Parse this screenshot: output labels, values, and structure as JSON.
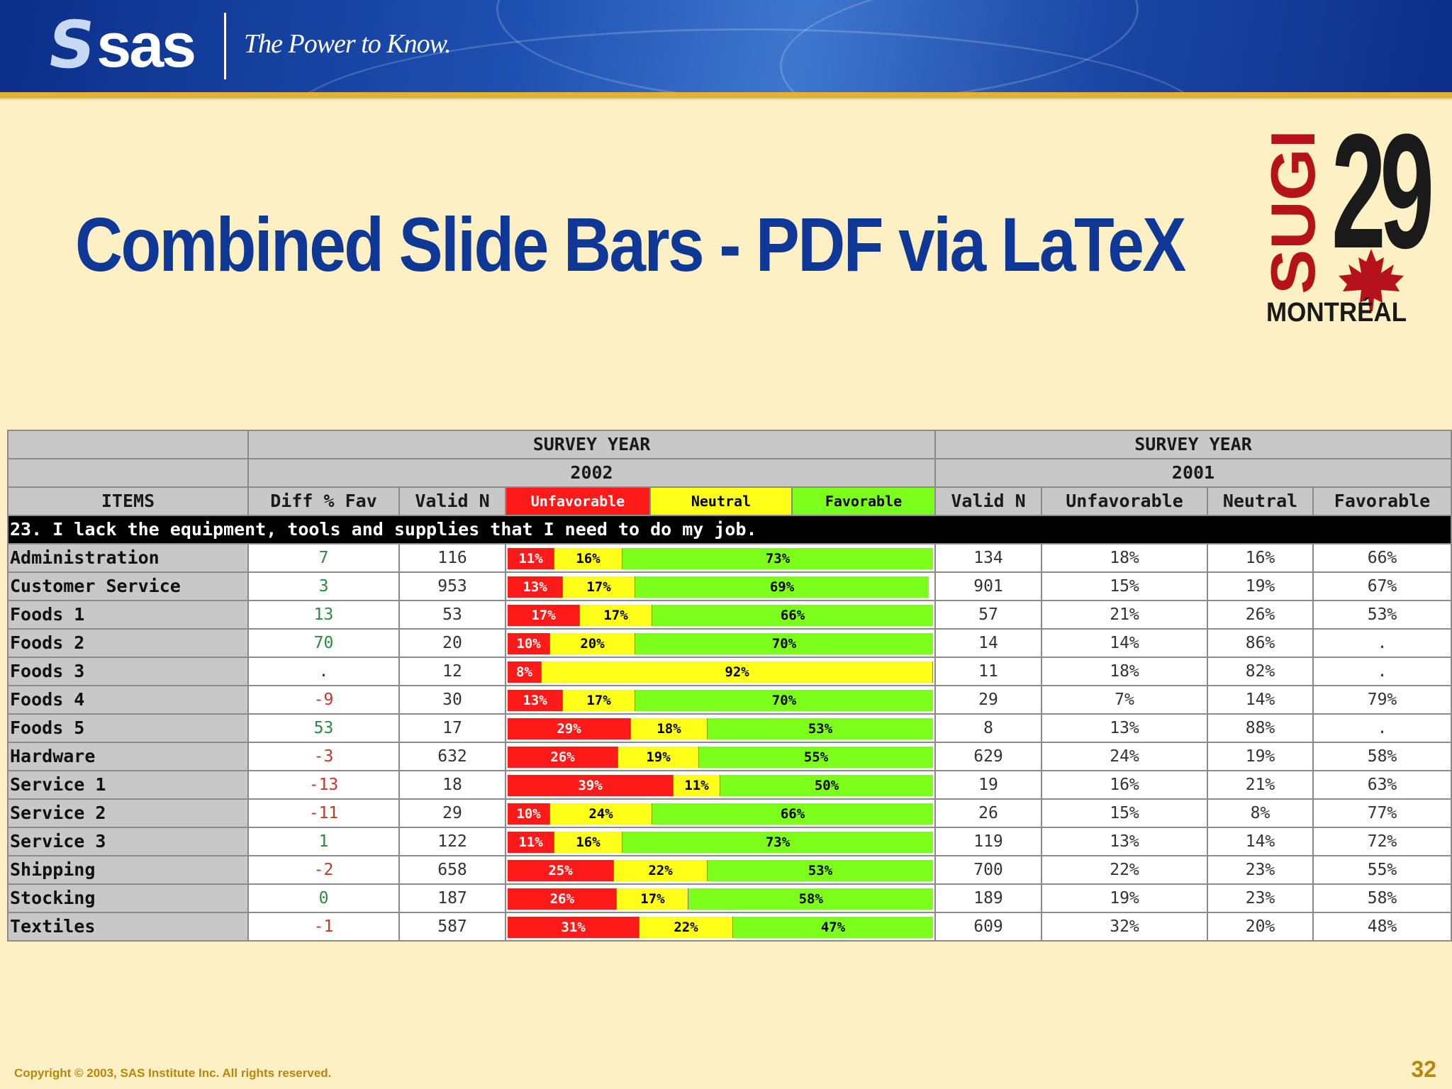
{
  "banner": {
    "logo_word": "sas",
    "tagline": "The Power to Know."
  },
  "slide": {
    "title": "Combined Slide Bars  - PDF via LaTeX",
    "copyright": "Copyright © 2003, SAS Institute Inc. All rights reserved.",
    "page_number": "32"
  },
  "sugi_logo": {
    "vertical_text": "SUGI",
    "number": "29",
    "city": "MONTRÉAL",
    "icon": "maple-leaf-icon"
  },
  "colors": {
    "unfavorable": "#ff1a1a",
    "neutral": "#ffff1a",
    "favorable": "#7cff1a",
    "title": "#0f3796"
  },
  "table": {
    "group_2002": {
      "label": "SURVEY YEAR",
      "year": "2002"
    },
    "group_2001": {
      "label": "SURVEY YEAR",
      "year": "2001"
    },
    "columns": {
      "items": "ITEMS",
      "diff": "Diff % Fav",
      "valid_2002": "Valid N",
      "unfav_2002": "Unfavorable",
      "neutral_2002": "Neutral",
      "fav_2002": "Favorable",
      "valid_2001": "Valid N",
      "unfav_2001": "Unfavorable",
      "neutral_2001": "Neutral",
      "fav_2001": "Favorable"
    },
    "question": "23. I lack the equipment, tools and supplies that I need to do my job.",
    "rows": [
      {
        "item": "Administration",
        "diff": "7",
        "n2002": "116",
        "u": 11,
        "ne": 16,
        "f": 73,
        "ul": "11%",
        "nl": "16%",
        "fl": "73%",
        "n2001": "134",
        "u01": "18%",
        "ne01": "16%",
        "f01": "66%"
      },
      {
        "item": "Customer Service",
        "diff": "3",
        "n2002": "953",
        "u": 13,
        "ne": 17,
        "f": 69,
        "ul": "13%",
        "nl": "17%",
        "fl": "69%",
        "n2001": "901",
        "u01": "15%",
        "ne01": "19%",
        "f01": "67%"
      },
      {
        "item": "Foods 1",
        "diff": "13",
        "n2002": "53",
        "u": 17,
        "ne": 17,
        "f": 66,
        "ul": "17%",
        "nl": "17%",
        "fl": "66%",
        "n2001": "57",
        "u01": "21%",
        "ne01": "26%",
        "f01": "53%"
      },
      {
        "item": "Foods 2",
        "diff": "70",
        "n2002": "20",
        "u": 10,
        "ne": 20,
        "f": 70,
        "ul": "10%",
        "nl": "20%",
        "fl": "70%",
        "n2001": "14",
        "u01": "14%",
        "ne01": "86%",
        "f01": "."
      },
      {
        "item": "Foods 3",
        "diff": ".",
        "n2002": "12",
        "u": 8,
        "ne": 92,
        "f": 0,
        "ul": "8%",
        "nl": "92%",
        "fl": "",
        "n2001": "11",
        "u01": "18%",
        "ne01": "82%",
        "f01": "."
      },
      {
        "item": "Foods 4",
        "diff": "-9",
        "n2002": "30",
        "u": 13,
        "ne": 17,
        "f": 70,
        "ul": "13%",
        "nl": "17%",
        "fl": "70%",
        "n2001": "29",
        "u01": "7%",
        "ne01": "14%",
        "f01": "79%"
      },
      {
        "item": "Foods 5",
        "diff": "53",
        "n2002": "17",
        "u": 29,
        "ne": 18,
        "f": 53,
        "ul": "29%",
        "nl": "18%",
        "fl": "53%",
        "n2001": "8",
        "u01": "13%",
        "ne01": "88%",
        "f01": "."
      },
      {
        "item": "Hardware",
        "diff": "-3",
        "n2002": "632",
        "u": 26,
        "ne": 19,
        "f": 55,
        "ul": "26%",
        "nl": "19%",
        "fl": "55%",
        "n2001": "629",
        "u01": "24%",
        "ne01": "19%",
        "f01": "58%"
      },
      {
        "item": "Service 1",
        "diff": "-13",
        "n2002": "18",
        "u": 39,
        "ne": 11,
        "f": 50,
        "ul": "39%",
        "nl": "11%",
        "fl": "50%",
        "n2001": "19",
        "u01": "16%",
        "ne01": "21%",
        "f01": "63%"
      },
      {
        "item": "Service 2",
        "diff": "-11",
        "n2002": "29",
        "u": 10,
        "ne": 24,
        "f": 66,
        "ul": "10%",
        "nl": "24%",
        "fl": "66%",
        "n2001": "26",
        "u01": "15%",
        "ne01": "8%",
        "f01": "77%"
      },
      {
        "item": "Service 3",
        "diff": "1",
        "n2002": "122",
        "u": 11,
        "ne": 16,
        "f": 73,
        "ul": "11%",
        "nl": "16%",
        "fl": "73%",
        "n2001": "119",
        "u01": "13%",
        "ne01": "14%",
        "f01": "72%"
      },
      {
        "item": "Shipping",
        "diff": "-2",
        "n2002": "658",
        "u": 25,
        "ne": 22,
        "f": 53,
        "ul": "25%",
        "nl": "22%",
        "fl": "53%",
        "n2001": "700",
        "u01": "22%",
        "ne01": "23%",
        "f01": "55%"
      },
      {
        "item": "Stocking",
        "diff": "0",
        "n2002": "187",
        "u": 26,
        "ne": 17,
        "f": 58,
        "ul": "26%",
        "nl": "17%",
        "fl": "58%",
        "n2001": "189",
        "u01": "19%",
        "ne01": "23%",
        "f01": "58%"
      },
      {
        "item": "Textiles",
        "diff": "-1",
        "n2002": "587",
        "u": 31,
        "ne": 22,
        "f": 47,
        "ul": "31%",
        "nl": "22%",
        "fl": "47%",
        "n2001": "609",
        "u01": "32%",
        "ne01": "20%",
        "f01": "48%"
      }
    ]
  }
}
